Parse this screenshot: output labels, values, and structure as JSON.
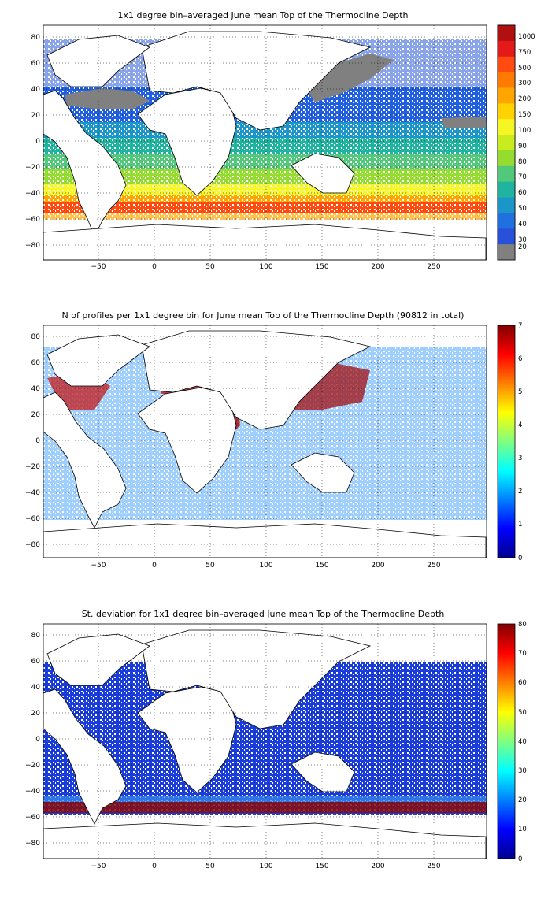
{
  "panels": [
    {
      "title": "1x1 degree bin–averaged June mean Top of the Thermocline Depth",
      "x_ticks": [
        "−50",
        "0",
        "50",
        "100",
        "150",
        "200",
        "250"
      ],
      "y_ticks": [
        "80",
        "60",
        "40",
        "20",
        "0",
        "−20",
        "−40",
        "−60",
        "−80"
      ],
      "colorbar_ticks": [
        "1000",
        "750",
        "500",
        "300",
        "200",
        "150",
        "100",
        "90",
        "80",
        "70",
        "60",
        "50",
        "40",
        "30",
        "20"
      ],
      "colorbar_colors": [
        "#b01010",
        "#e41a1a",
        "#ff4a10",
        "#ff7a00",
        "#ffa500",
        "#ffd200",
        "#f6f624",
        "#c8ec1e",
        "#94dc30",
        "#52c87a",
        "#1eb4a0",
        "#1a96c8",
        "#2070e0",
        "#2850d8",
        "#808080"
      ],
      "colormap": "discrete",
      "missing_color": "#808080"
    },
    {
      "title": "N of profiles per 1x1 degree bin for June mean Top of the Thermocline Depth  (90812 in total)",
      "x_ticks": [
        "−50",
        "0",
        "50",
        "100",
        "150",
        "200",
        "250"
      ],
      "y_ticks": [
        "80",
        "60",
        "40",
        "20",
        "0",
        "−20",
        "−40",
        "−60",
        "−80"
      ],
      "colorbar_ticks": [
        "7",
        "6",
        "5",
        "4",
        "3",
        "2",
        "1",
        "0"
      ],
      "colormap": "jet"
    },
    {
      "title": "St. deviation for 1x1 degree bin–averaged June mean Top of the Thermocline Depth",
      "x_ticks": [
        "−50",
        "0",
        "50",
        "100",
        "150",
        "200",
        "250"
      ],
      "y_ticks": [
        "80",
        "60",
        "40",
        "20",
        "0",
        "−20",
        "−40",
        "−60",
        "−80"
      ],
      "colorbar_ticks": [
        "80",
        "70",
        "60",
        "50",
        "40",
        "30",
        "20",
        "10",
        "0"
      ],
      "colormap": "jet"
    }
  ]
}
